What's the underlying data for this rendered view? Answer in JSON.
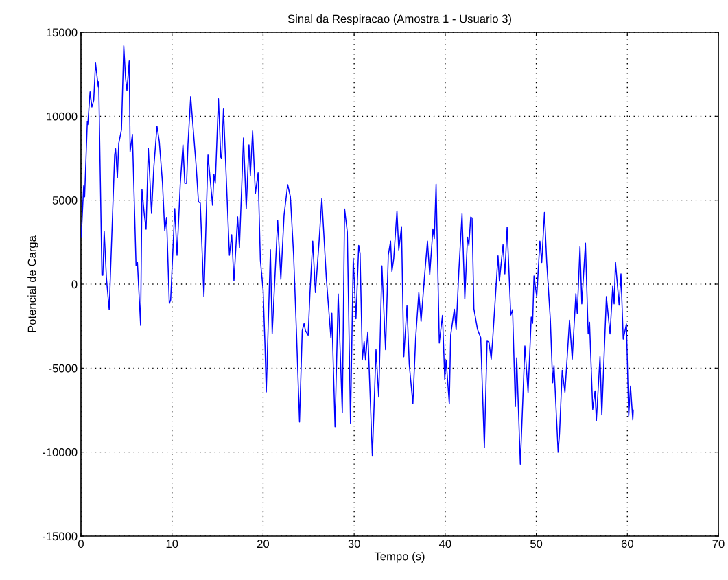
{
  "chart_data": {
    "type": "line",
    "title": "Sinal da Respiracao (Amostra 1 - Usuario 3)",
    "xlabel": "Tempo (s)",
    "ylabel": "Potencial de Carga",
    "xlim": [
      0,
      70
    ],
    "xticks": [
      0,
      10,
      20,
      30,
      40,
      50,
      60,
      70
    ],
    "ylim": [
      -15000,
      15000
    ],
    "yticks": [
      -15000,
      -10000,
      -5000,
      0,
      5000,
      10000,
      15000
    ],
    "grid": true,
    "series": [
      {
        "color": "#0000ff",
        "x": [
          0,
          0.1,
          0.3,
          0.4,
          0.7,
          0.75,
          1.0,
          1.2,
          1.4,
          1.6,
          1.9,
          1.95,
          2.3,
          2.4,
          2.55,
          2.8,
          3.1,
          3.7,
          3.8,
          4.0,
          4.15,
          4.45,
          4.7,
          4.9,
          5.05,
          5.3,
          5.4,
          5.65,
          6.05,
          6.2,
          6.55,
          6.7,
          6.95,
          7.15,
          7.4,
          7.75,
          8.0,
          8.35,
          8.6,
          8.95,
          9.2,
          9.4,
          9.7,
          9.85,
          10.3,
          10.55,
          10.9,
          11.2,
          11.4,
          11.6,
          11.75,
          12.05,
          12.35,
          12.65,
          12.9,
          13.1,
          13.5,
          13.95,
          14.45,
          14.6,
          14.75,
          15.1,
          15.35,
          15.45,
          15.65,
          16.3,
          16.55,
          16.8,
          17.2,
          17.4,
          17.85,
          18.15,
          18.45,
          18.6,
          18.85,
          19.15,
          19.45,
          19.7,
          20.0,
          20.2,
          20.35,
          20.8,
          21.0,
          21.6,
          21.95,
          22.3,
          22.7,
          23.0,
          23.35,
          23.65,
          24.0,
          24.3,
          24.5,
          24.65,
          24.95,
          25.15,
          25.45,
          25.75,
          26.15,
          26.45,
          26.95,
          27.45,
          27.55,
          27.9,
          28.25,
          28.7,
          28.95,
          29.25,
          29.6,
          29.9,
          30.2,
          30.5,
          30.65,
          30.9,
          31.1,
          31.25,
          31.5,
          32.0,
          32.4,
          32.7,
          33.05,
          33.45,
          33.75,
          34.0,
          34.15,
          34.35,
          34.7,
          34.9,
          35.2,
          35.45,
          35.8,
          36.05,
          36.45,
          36.75,
          37.1,
          37.35,
          37.7,
          38.05,
          38.3,
          38.65,
          38.8,
          39.0,
          39.35,
          39.7,
          39.95,
          40.1,
          40.45,
          40.6,
          41.0,
          41.2,
          41.5,
          41.85,
          42.15,
          42.45,
          42.6,
          42.8,
          42.95,
          43.15,
          43.55,
          43.9,
          44.3,
          44.6,
          44.8,
          45.05,
          45.2,
          45.8,
          45.95,
          46.35,
          46.55,
          46.8,
          47.2,
          47.4,
          47.7,
          47.85,
          48.25,
          48.75,
          49.1,
          49.45,
          49.6,
          49.75,
          50.05,
          50.4,
          50.6,
          50.9,
          51.15,
          51.55,
          51.8,
          51.95,
          52.4,
          52.55,
          52.85,
          53.15,
          53.4,
          53.65,
          53.95,
          54.35,
          54.5,
          54.8,
          55.0,
          55.4,
          55.7,
          55.85,
          56.2,
          56.45,
          56.6,
          57.0,
          57.2,
          57.7,
          58.1,
          58.4,
          58.55,
          58.7,
          59.1,
          59.3,
          59.55,
          59.9,
          60.15,
          60.35,
          60.6,
          60.65
        ],
        "values": [
          2780,
          3600,
          5850,
          5200,
          9700,
          9500,
          11450,
          10550,
          10950,
          13170,
          11740,
          12070,
          530,
          530,
          3150,
          330,
          -1510,
          7690,
          8060,
          6340,
          8380,
          9200,
          14190,
          12270,
          11530,
          13290,
          7890,
          8920,
          1100,
          1310,
          -2450,
          5640,
          4170,
          3270,
          8100,
          4210,
          6950,
          9410,
          8510,
          6050,
          3190,
          3970,
          -1150,
          -940,
          4500,
          1720,
          5930,
          8300,
          6010,
          6010,
          8300,
          11170,
          9080,
          7030,
          4910,
          4830,
          -740,
          7690,
          4700,
          6540,
          6010,
          11040,
          7570,
          7480,
          10430,
          1720,
          2940,
          200,
          4010,
          2170,
          8710,
          4500,
          8300,
          6460,
          9120,
          5400,
          6630,
          1430,
          -330,
          -3480,
          -6420,
          2050,
          -2940,
          3800,
          290,
          4090,
          5930,
          5190,
          1760,
          -2630,
          -8200,
          -2760,
          -2350,
          -2760,
          -3040,
          -500,
          2560,
          -500,
          2560,
          5100,
          310,
          -3210,
          -1730,
          -8490,
          -580,
          -7630,
          4480,
          3100,
          -8280,
          1540,
          -2060,
          2310,
          1820,
          -4480,
          -3410,
          -4520,
          -2840,
          -10240,
          -3900,
          -6720,
          1090,
          -3900,
          1740,
          2560,
          760,
          1540,
          4360,
          2030,
          3420,
          -4320,
          -1290,
          -4770,
          -7120,
          -3250,
          -500,
          -2220,
          270,
          2560,
          560,
          3290,
          2720,
          5960,
          -3500,
          -1860,
          -5670,
          -4520,
          -7120,
          -3040,
          -1490,
          -2720,
          800,
          4190,
          -880,
          2800,
          2310,
          3990,
          3950,
          -1470,
          -2700,
          -3190,
          -9740,
          -3390,
          -3440,
          -4460,
          -3390,
          1690,
          180,
          2350,
          610,
          3400,
          -1840,
          -1510,
          -7280,
          -4380,
          -10720,
          -3680,
          -6460,
          -1960,
          -2330,
          490,
          -740,
          2560,
          1290,
          4270,
          1290,
          -2150,
          -5870,
          -4850,
          -10000,
          -8940,
          -5130,
          -6440,
          -4310,
          -2150,
          -4460,
          -560,
          -1740,
          2230,
          -1170,
          2440,
          -2960,
          -2270,
          -7460,
          -6360,
          -8120,
          -4310,
          -7790,
          -740,
          -2960,
          -90,
          -1170,
          1290,
          -1250,
          610,
          -3270,
          -2370,
          -7870,
          -6070,
          -8080,
          -7500
        ]
      }
    ]
  }
}
